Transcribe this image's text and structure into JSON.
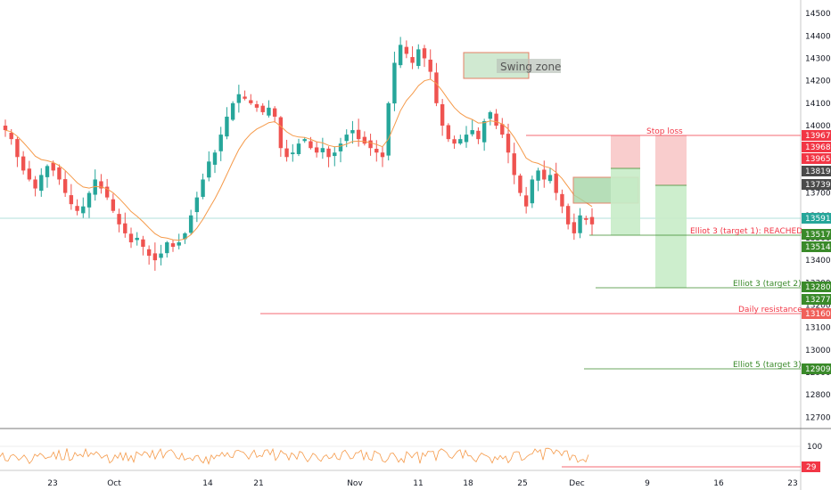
{
  "chart_data": {
    "type": "candlestick",
    "indicator_ma": "orange moving average",
    "y_ticks": [
      12700,
      12800,
      12900,
      13000,
      13100,
      13200,
      13300,
      13400,
      13500,
      13600,
      13700,
      13800,
      13900,
      14000,
      14100,
      14200,
      14300,
      14400,
      14500
    ],
    "ylim": [
      12650,
      14560
    ],
    "x_ticks": [
      "23",
      "Oct",
      "14",
      "21",
      "Nov",
      "11",
      "18",
      "25",
      "Dec",
      "9",
      "16",
      "23"
    ],
    "series_close": [
      13980,
      13940,
      13860,
      13800,
      13760,
      13720,
      13780,
      13820,
      13800,
      13760,
      13700,
      13650,
      13620,
      13640,
      13700,
      13760,
      13720,
      13680,
      13620,
      13560,
      13520,
      13480,
      13500,
      13460,
      13420,
      13400,
      13430,
      13480,
      13460,
      13480,
      13520,
      13600,
      13680,
      13760,
      13840,
      13880,
      13960,
      14040,
      14100,
      14140,
      14120,
      14100,
      14080,
      14060,
      14080,
      14040,
      13900,
      13860,
      13880,
      13920,
      13940,
      13900,
      13880,
      13900,
      13860,
      13880,
      13920,
      13960,
      13980,
      13940,
      13920,
      13900,
      13880,
      13860,
      14100,
      14280,
      14360,
      14320,
      14280,
      14340,
      14300,
      14240,
      14100,
      14000,
      13940,
      13920,
      13940,
      13960,
      13980,
      13940,
      14020,
      14060,
      14000,
      13960,
      13880,
      13780,
      13700,
      13640,
      13760,
      13800,
      13760,
      13780,
      13700,
      13640,
      13560,
      13520,
      13600,
      13580,
      13560
    ],
    "rsi_line_value": "29",
    "price_tags": [
      {
        "text": "13967",
        "kind": "red"
      },
      {
        "text": "13968",
        "kind": "red"
      },
      {
        "text": "13965",
        "kind": "red"
      },
      {
        "text": "13819",
        "kind": "dark"
      },
      {
        "text": "13739",
        "kind": "dark"
      },
      {
        "text": "13591",
        "kind": "teal"
      },
      {
        "text": "13517",
        "kind": "green"
      },
      {
        "text": "13514",
        "kind": "green"
      },
      {
        "text": "13280",
        "kind": "green"
      },
      {
        "text": "13277",
        "kind": "green"
      },
      {
        "text": "13160",
        "kind": "redlight"
      },
      {
        "text": "12909",
        "kind": "green"
      }
    ],
    "annotations": {
      "swing_zone": "Swing zone",
      "stop_loss": "Stop loss",
      "target1": "Elliot 3 (target 1): REACHED",
      "target2": "Elliot 3 (target 2)",
      "daily_resistance": "Daily resistance",
      "target3": "Elliot 5 (target 3)"
    },
    "rsi_ticks": [
      "100"
    ],
    "colors": {
      "up": "#26a69a",
      "down": "#ef5350",
      "ma": "#f59a4a",
      "rsi": "#f59a4a",
      "stop": "#f23645",
      "target": "#3a8a2a",
      "teal": "#26a69a"
    }
  }
}
